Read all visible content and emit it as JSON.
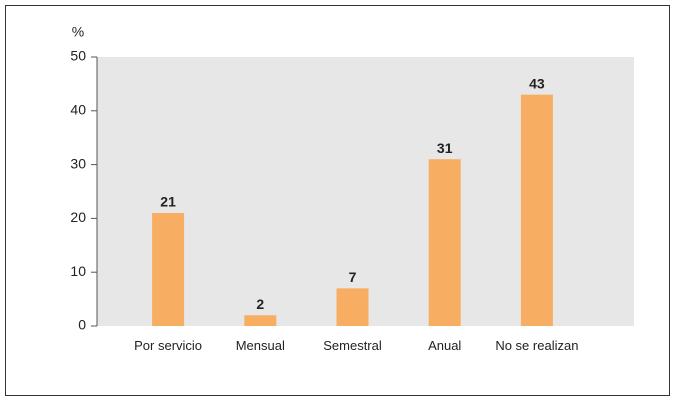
{
  "chart_data": {
    "type": "bar",
    "y_label": "%",
    "categories": [
      "Por servicio",
      "Mensual",
      "Semestral",
      "Anual",
      "No se realizan"
    ],
    "values": [
      21,
      2,
      7,
      31,
      43
    ],
    "color": "#f7ad62",
    "ylim": [
      0,
      50
    ],
    "yticks": [
      0,
      10,
      20,
      30,
      40,
      50
    ],
    "grid": false
  }
}
